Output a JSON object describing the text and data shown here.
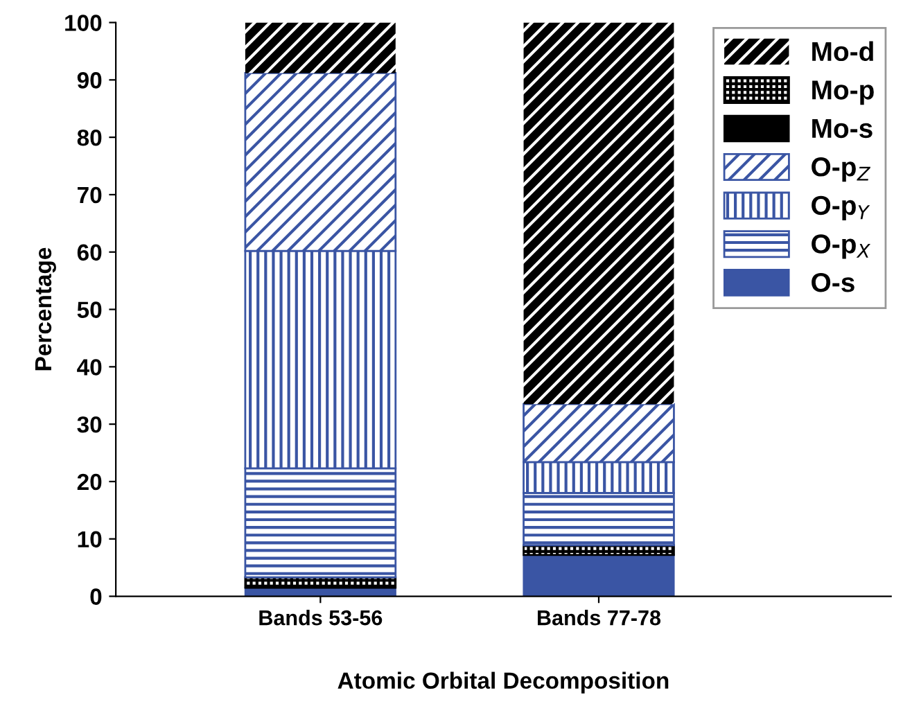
{
  "chart_data": {
    "type": "bar",
    "stacked": true,
    "xlabel": "Atomic Orbital Decomposition",
    "ylabel": "Percentage",
    "categories": [
      "Bands 53-56",
      "Bands 77-78"
    ],
    "series": [
      {
        "name": "O-s",
        "color": "#3a55a4",
        "values": [
          1.5,
          7.2
        ]
      },
      {
        "name": "Mo-s",
        "color": "#000000",
        "values": [
          0,
          0
        ]
      },
      {
        "name": "Mo-p",
        "color": "#000000",
        "values": [
          1.8,
          1.7
        ]
      },
      {
        "name": "O-p$_{X}$",
        "color": "#3a55a4",
        "values": [
          19,
          9.1
        ]
      },
      {
        "name": "O-p$_{Y}$",
        "color": "#3a55a4",
        "values": [
          37.9,
          5.4
        ]
      },
      {
        "name": "O-p$_{Z}$",
        "color": "#3a55a4",
        "values": [
          31,
          10.1
        ]
      },
      {
        "name": "Mo-d",
        "color": "#000000",
        "values": [
          8.8,
          66.5
        ]
      }
    ],
    "ylim": [
      0,
      100
    ],
    "yticks": [
      0,
      10,
      20,
      30,
      40,
      50,
      60,
      70,
      80,
      90,
      100
    ],
    "grid": false,
    "legend": "right"
  }
}
